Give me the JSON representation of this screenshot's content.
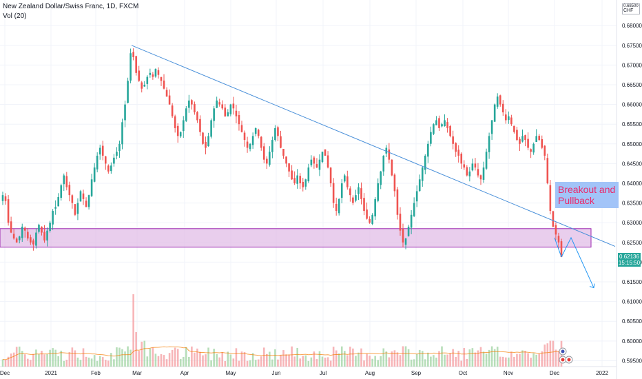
{
  "chart_data": {
    "type": "candlestick",
    "title": "New Zealand Dollar/Swiss Franc, 1D, FXCM",
    "indicator": "Vol (20)",
    "currency_label": "CHF",
    "top_price": "0.68500",
    "y_ticks": [
      "0.68000",
      "0.67500",
      "0.67000",
      "0.66500",
      "0.66000",
      "0.65500",
      "0.65000",
      "0.64500",
      "0.64000",
      "0.63500",
      "0.63000",
      "0.62500",
      "0.62000",
      "0.61500",
      "0.61000",
      "0.60500",
      "0.60000",
      "0.59500"
    ],
    "x_ticks": [
      "Dec",
      "2021",
      "Feb",
      "Mar",
      "Apr",
      "May",
      "Jun",
      "Jul",
      "Aug",
      "Sep",
      "Oct",
      "Nov",
      "Dec",
      "2022"
    ],
    "ylim": [
      0.5935,
      0.6865
    ],
    "last_price": "0.62136",
    "countdown": "15:15:50",
    "annotation": "Breakout and Pullback",
    "support_zone": [
      0.6238,
      0.6285
    ],
    "trendline": {
      "start": [
        "2021-02-24",
        0.675
      ],
      "end": [
        "2022-01-15",
        0.624
      ]
    },
    "projection": [
      0.6213,
      0.6262,
      0.6135
    ],
    "price_path": [
      0.637,
      0.6355,
      0.63,
      0.6275,
      0.626,
      0.625,
      0.6265,
      0.629,
      0.628,
      0.626,
      0.625,
      0.6245,
      0.6275,
      0.6295,
      0.6275,
      0.6255,
      0.628,
      0.63,
      0.633,
      0.634,
      0.6365,
      0.6395,
      0.642,
      0.639,
      0.637,
      0.635,
      0.632,
      0.635,
      0.638,
      0.636,
      0.634,
      0.637,
      0.641,
      0.644,
      0.647,
      0.649,
      0.647,
      0.645,
      0.643,
      0.6445,
      0.6465,
      0.648,
      0.65,
      0.6555,
      0.66,
      0.666,
      0.673,
      0.672,
      0.668,
      0.666,
      0.664,
      0.665,
      0.667,
      0.668,
      0.667,
      0.669,
      0.6675,
      0.666,
      0.664,
      0.662,
      0.66,
      0.657,
      0.654,
      0.652,
      0.653,
      0.656,
      0.659,
      0.661,
      0.66,
      0.658,
      0.656,
      0.653,
      0.65,
      0.649,
      0.652,
      0.656,
      0.659,
      0.661,
      0.66,
      0.659,
      0.657,
      0.658,
      0.66,
      0.659,
      0.657,
      0.655,
      0.653,
      0.651,
      0.649,
      0.65,
      0.652,
      0.654,
      0.652,
      0.649,
      0.646,
      0.645,
      0.648,
      0.651,
      0.654,
      0.652,
      0.649,
      0.647,
      0.645,
      0.643,
      0.641,
      0.64,
      0.642,
      0.64,
      0.639,
      0.641,
      0.644,
      0.646,
      0.645,
      0.644,
      0.646,
      0.648,
      0.647,
      0.644,
      0.64,
      0.635,
      0.633,
      0.636,
      0.64,
      0.642,
      0.639,
      0.637,
      0.635,
      0.637,
      0.639,
      0.636,
      0.633,
      0.631,
      0.63,
      0.632,
      0.636,
      0.64,
      0.643,
      0.647,
      0.649,
      0.646,
      0.642,
      0.638,
      0.632,
      0.628,
      0.625,
      0.626,
      0.629,
      0.632,
      0.635,
      0.638,
      0.641,
      0.644,
      0.647,
      0.65,
      0.653,
      0.655,
      0.656,
      0.654,
      0.655,
      0.656,
      0.654,
      0.652,
      0.65,
      0.648,
      0.647,
      0.645,
      0.644,
      0.642,
      0.643,
      0.645,
      0.644,
      0.642,
      0.641,
      0.644,
      0.648,
      0.652,
      0.656,
      0.66,
      0.662,
      0.66,
      0.658,
      0.656,
      0.657,
      0.655,
      0.653,
      0.651,
      0.65,
      0.652,
      0.651,
      0.649,
      0.648,
      0.65,
      0.652,
      0.651,
      0.649,
      0.647,
      0.64,
      0.633,
      0.629,
      0.627,
      0.625,
      0.6213
    ],
    "volume_ylim": [
      0,
      0.07
    ],
    "volume_ma_note": "20-period moving average"
  }
}
